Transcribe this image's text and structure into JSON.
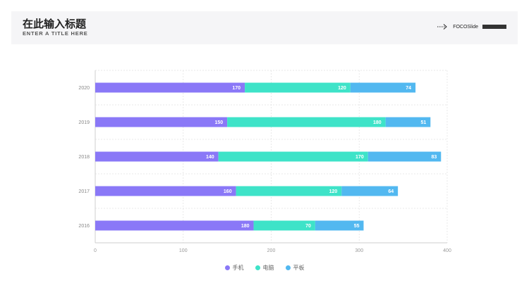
{
  "header": {
    "title": "在此输入标题",
    "subtitle": "ENTER A TITLE HERE",
    "brand": "FOCOSlide"
  },
  "colors": {
    "series": [
      "#8a78f7",
      "#3ee3c8",
      "#52b8f0"
    ]
  },
  "chart_data": {
    "type": "bar",
    "orientation": "horizontal",
    "stacked": true,
    "categories": [
      "2020",
      "2019",
      "2018",
      "2017",
      "2016"
    ],
    "series": [
      {
        "name": "手机",
        "values": [
          170,
          150,
          140,
          160,
          180
        ]
      },
      {
        "name": "电脑",
        "values": [
          120,
          180,
          170,
          120,
          70
        ]
      },
      {
        "name": "平板",
        "values": [
          74,
          51,
          83,
          64,
          55
        ]
      }
    ],
    "xticks": [
      "0",
      "100",
      "200",
      "300",
      "400"
    ],
    "xlim": [
      0,
      400
    ],
    "grid": true,
    "legend": "bottom"
  }
}
